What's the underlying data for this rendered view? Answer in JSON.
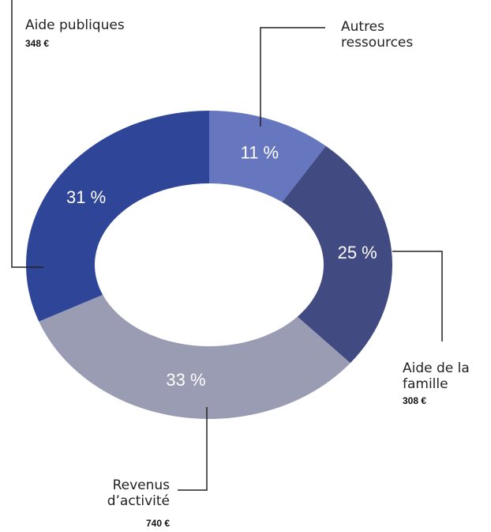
{
  "chart_data": {
    "type": "donut",
    "categories": [
      "Autres ressources",
      "Aide de la famille",
      "Revenus d’activité",
      "Aide publiques"
    ],
    "values": [
      11,
      25,
      33,
      31
    ],
    "value_labels": [
      "11 %",
      "25 %",
      "33 %",
      "31 %"
    ],
    "amount_labels": [
      null,
      "308 €",
      "740 €",
      "348 €"
    ],
    "colors": [
      "#6677c0",
      "#414b82",
      "#9a9cb4",
      "#2f4597"
    ]
  }
}
